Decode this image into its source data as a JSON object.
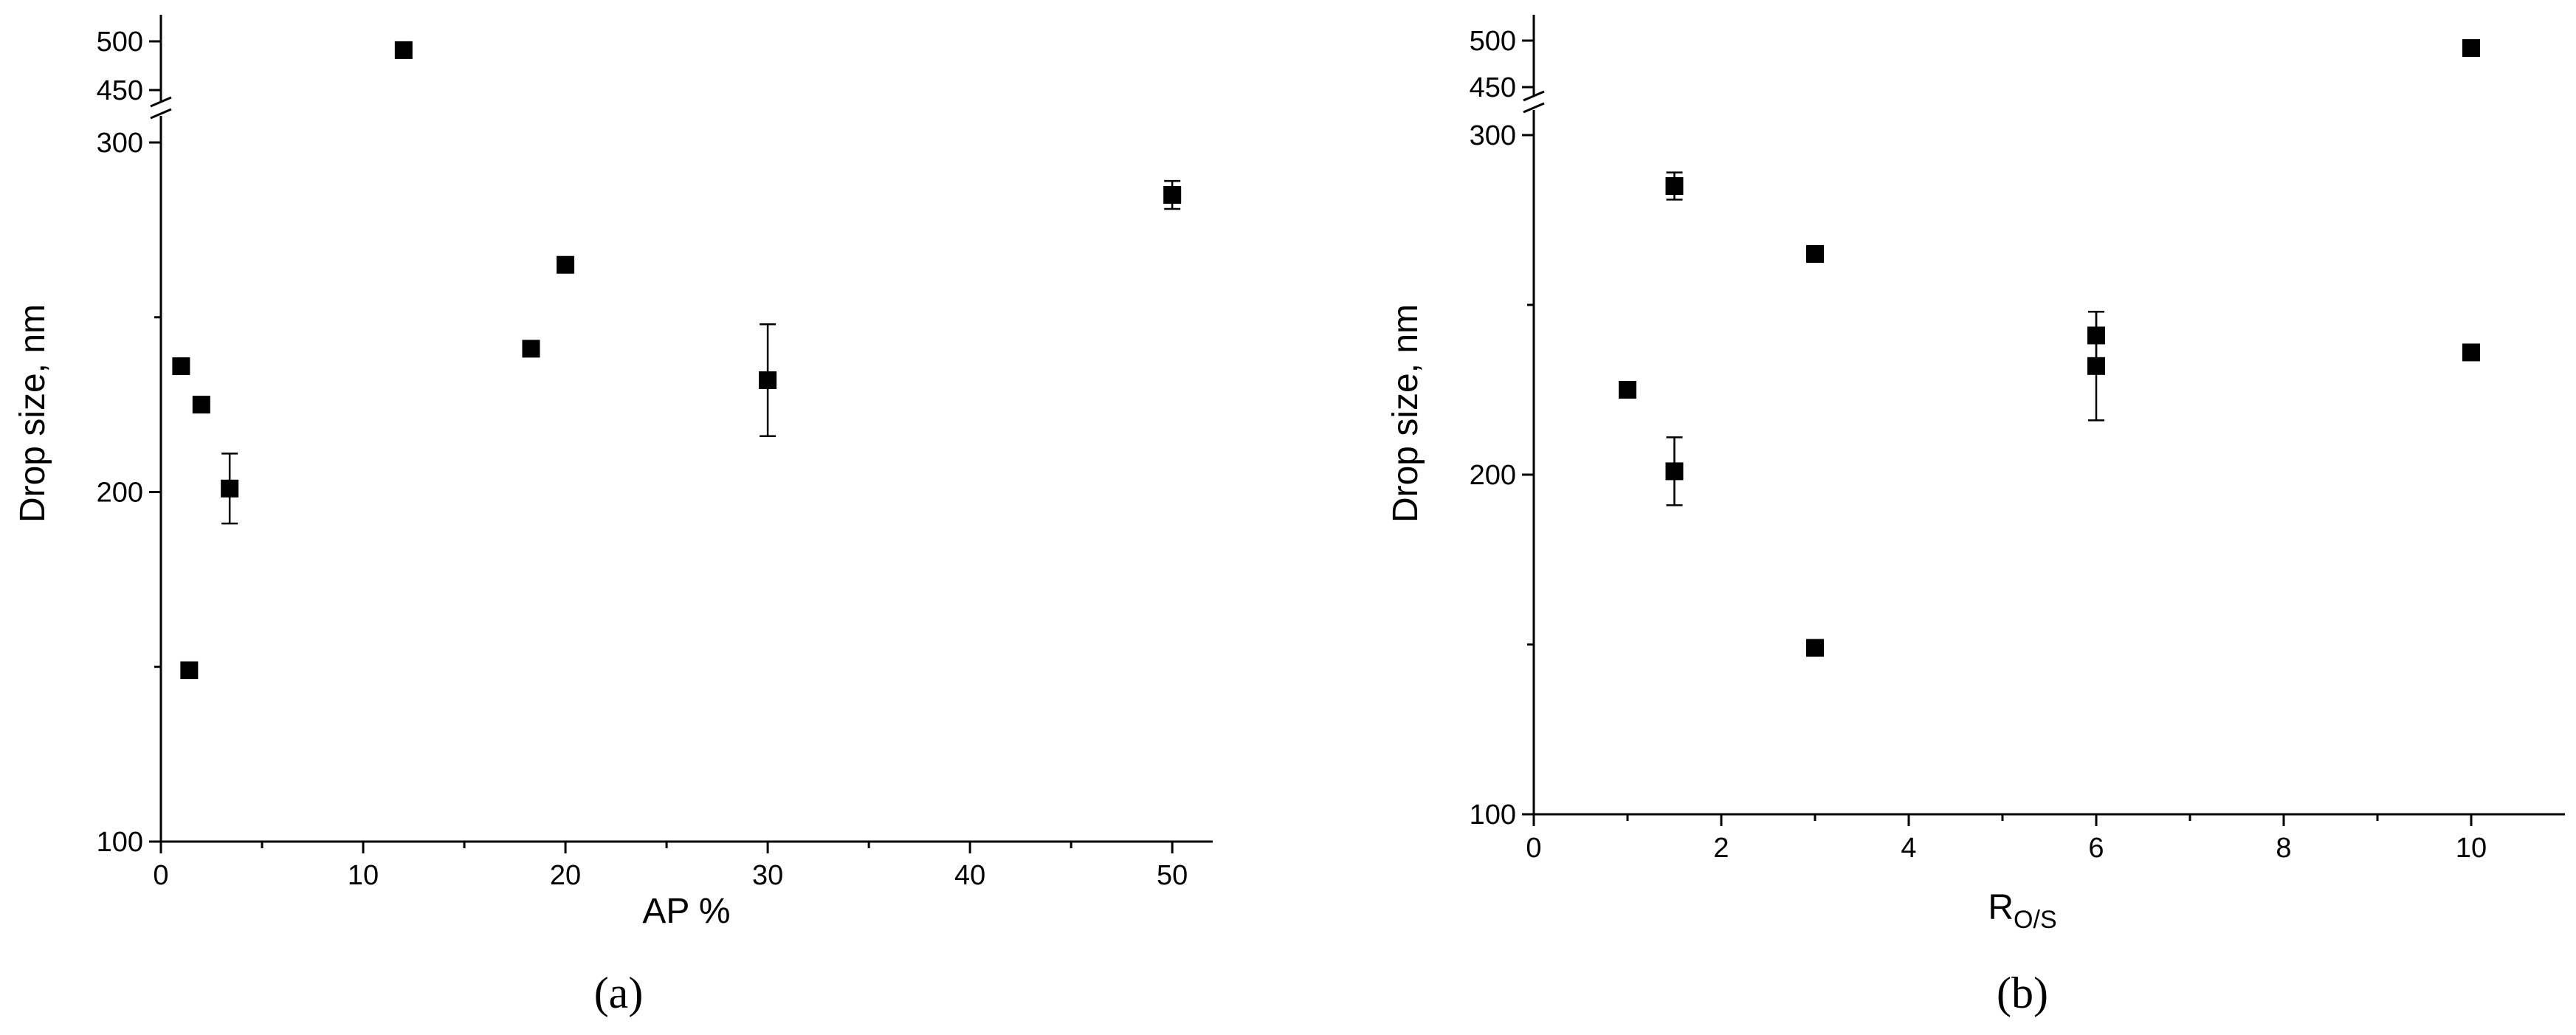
{
  "chart_data": [
    {
      "type": "scatter",
      "panel_label": "(a)",
      "xlabel": "AP %",
      "xlabel_sub": "",
      "ylabel": "Drop size, nm",
      "xlim": [
        0,
        52
      ],
      "xticks": [
        0,
        10,
        20,
        30,
        40,
        50
      ],
      "ylim_lower": [
        100,
        300
      ],
      "yticks_lower": [
        100,
        200,
        300
      ],
      "ylim_upper": [
        450,
        500
      ],
      "yticks_upper": [
        450,
        500
      ],
      "axis_break": true,
      "points": [
        {
          "x": 1.0,
          "y": 236,
          "err": 2
        },
        {
          "x": 1.4,
          "y": 149,
          "err": 0
        },
        {
          "x": 2.0,
          "y": 225,
          "err": 0
        },
        {
          "x": 3.4,
          "y": 201,
          "err": 10
        },
        {
          "x": 12,
          "y": 491,
          "err": 0
        },
        {
          "x": 18.3,
          "y": 241,
          "err": 0
        },
        {
          "x": 20,
          "y": 265,
          "err": 2
        },
        {
          "x": 30,
          "y": 232,
          "err": 16
        },
        {
          "x": 50,
          "y": 285,
          "err": 4
        }
      ]
    },
    {
      "type": "scatter",
      "panel_label": "(b)",
      "xlabel": "R",
      "xlabel_sub": "O/S",
      "ylabel": "Drop size, nm",
      "xlim": [
        0,
        11
      ],
      "xticks": [
        0,
        2,
        4,
        6,
        8,
        10
      ],
      "ylim_lower": [
        100,
        300
      ],
      "yticks_lower": [
        100,
        200,
        300
      ],
      "ylim_upper": [
        450,
        500
      ],
      "yticks_upper": [
        450,
        500
      ],
      "axis_break": true,
      "points": [
        {
          "x": 1.0,
          "y": 225,
          "err": 0
        },
        {
          "x": 1.5,
          "y": 285,
          "err": 4
        },
        {
          "x": 1.5,
          "y": 201,
          "err": 10
        },
        {
          "x": 3.0,
          "y": 265,
          "err": 2
        },
        {
          "x": 3.0,
          "y": 149,
          "err": 0
        },
        {
          "x": 6.0,
          "y": 241,
          "err": 7
        },
        {
          "x": 6.0,
          "y": 232,
          "err": 16
        },
        {
          "x": 10.0,
          "y": 492,
          "err": 0
        },
        {
          "x": 10.0,
          "y": 236,
          "err": 2
        }
      ]
    }
  ]
}
